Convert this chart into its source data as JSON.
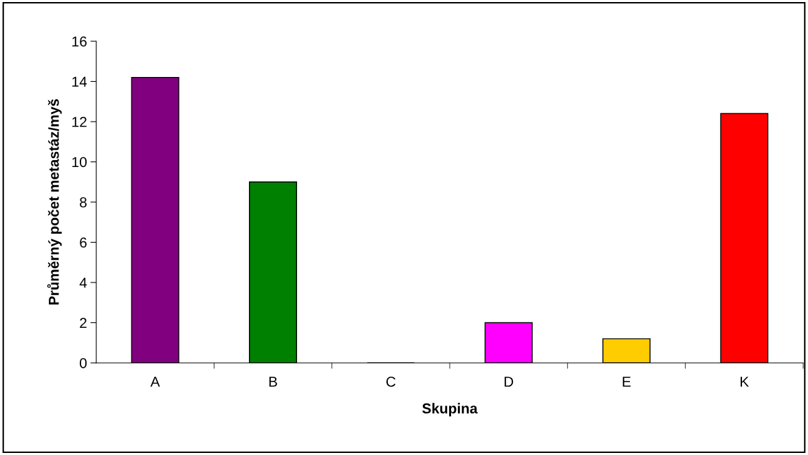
{
  "chart_data": {
    "type": "bar",
    "xlabel": "Skupina",
    "ylabel": "Průměrný počet metastáz/myš",
    "categories": [
      "A",
      "B",
      "C",
      "D",
      "E",
      "K"
    ],
    "values": [
      14.2,
      9.0,
      0,
      2.0,
      1.2,
      12.4
    ],
    "colors": [
      "#800080",
      "#008000",
      "#000000",
      "#ff00ff",
      "#ffcc00",
      "#ff0000"
    ],
    "ylim": [
      0,
      16
    ],
    "yticks": [
      0,
      2,
      4,
      6,
      8,
      10,
      12,
      14,
      16
    ],
    "grid": false,
    "legend": false
  }
}
